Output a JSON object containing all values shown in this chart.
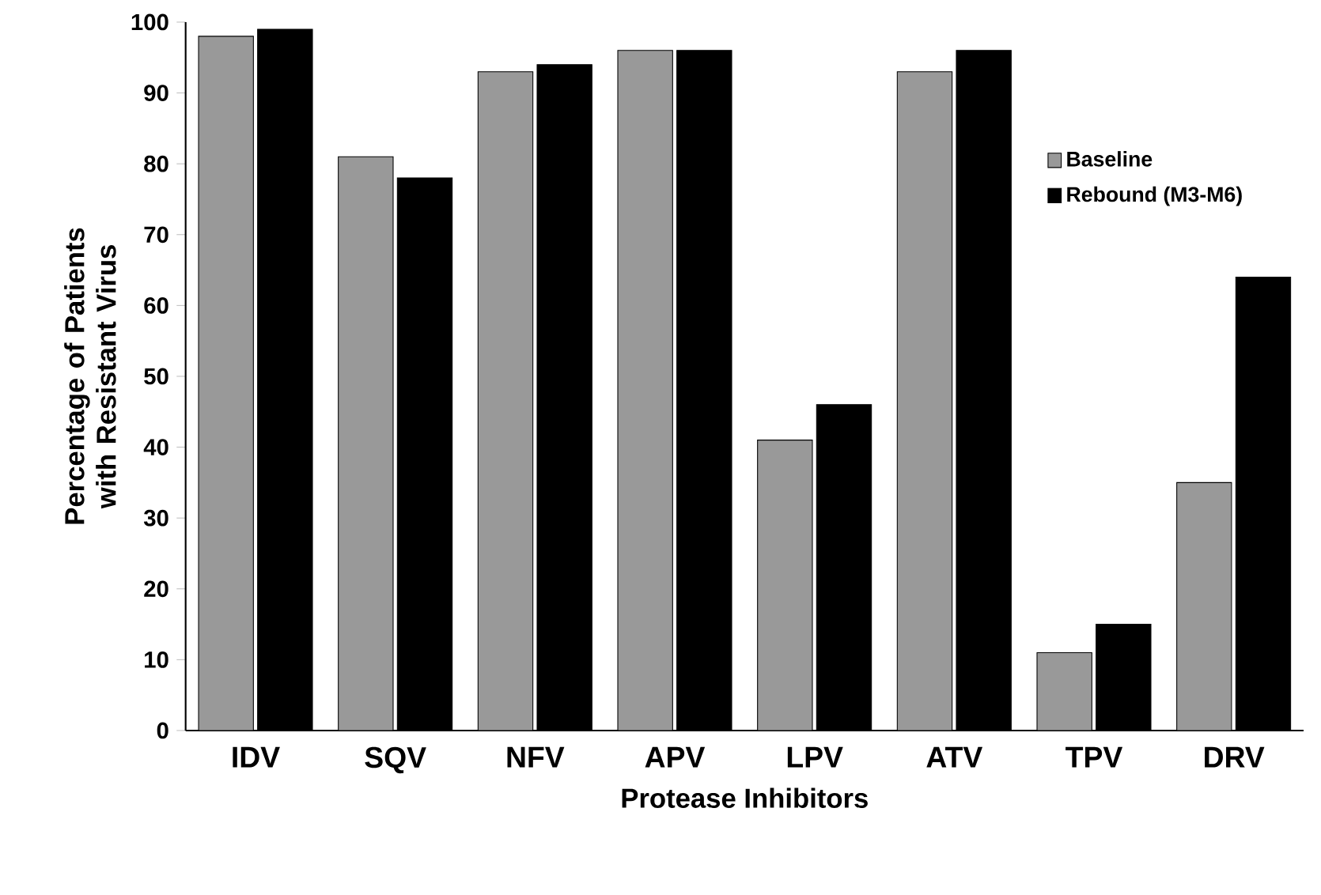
{
  "chart_data": {
    "type": "bar",
    "xlabel": "Protease Inhibitors",
    "ylabel": "Percentage of Patients with Resistant Virus",
    "categories": [
      "IDV",
      "SQV",
      "NFV",
      "APV",
      "LPV",
      "ATV",
      "TPV",
      "DRV"
    ],
    "series": [
      {
        "name": "Baseline",
        "color": "#999999",
        "values": [
          98,
          81,
          93,
          96,
          41,
          93,
          11,
          35
        ]
      },
      {
        "name": "Rebound (M3-M6)",
        "color": "#000000",
        "values": [
          99,
          78,
          94,
          96,
          46,
          96,
          15,
          64
        ]
      }
    ],
    "ylim": [
      0,
      100
    ],
    "yticks": [
      0,
      10,
      20,
      30,
      40,
      50,
      60,
      70,
      80,
      90,
      100
    ],
    "legend": "right",
    "grid": false
  }
}
